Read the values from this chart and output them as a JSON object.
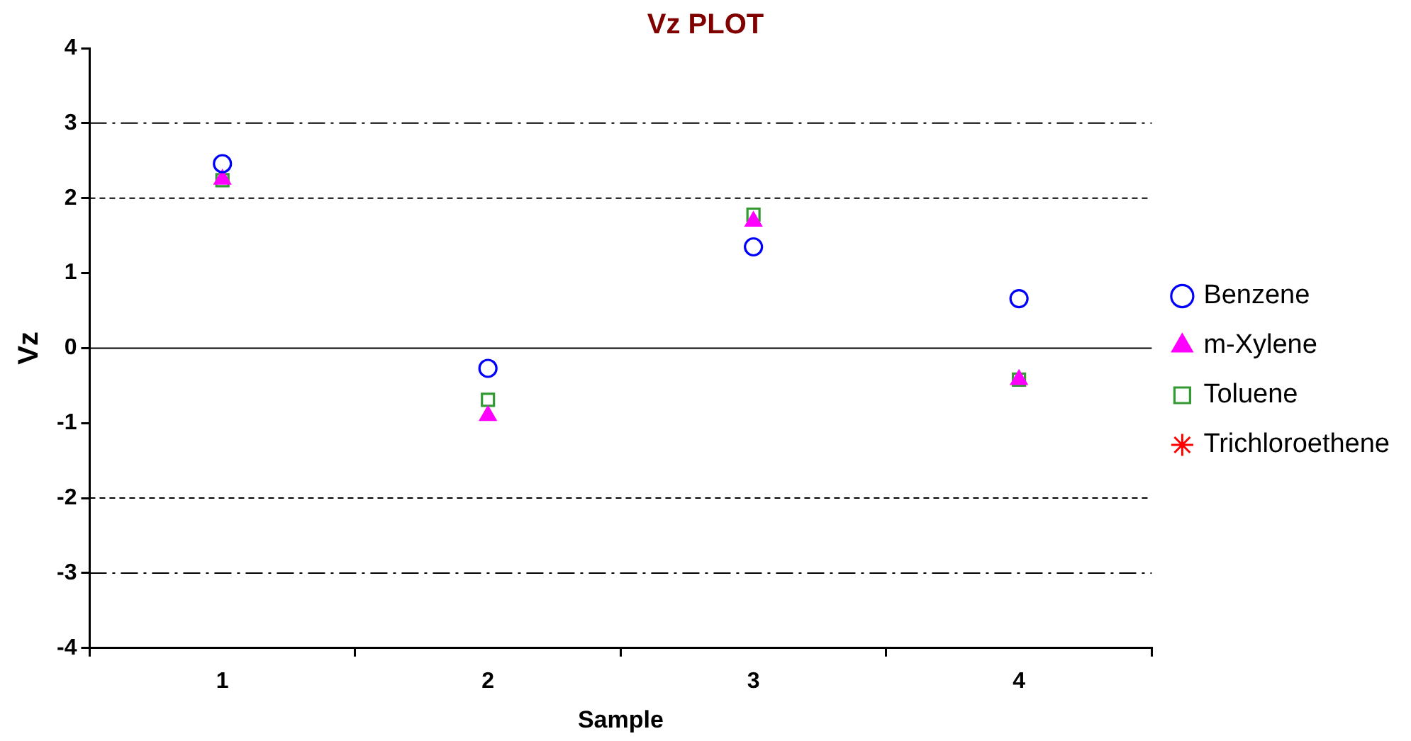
{
  "chart_data": {
    "type": "scatter",
    "title": "Vz PLOT",
    "xlabel": "Sample",
    "ylabel": "Vz",
    "categories": [
      "1",
      "2",
      "3",
      "4"
    ],
    "series": [
      {
        "name": "Benzene",
        "color": "#0000ff",
        "marker": "circle",
        "values": [
          2.46,
          -0.27,
          1.35,
          0.66
        ]
      },
      {
        "name": "m-Xylene",
        "color": "#ff00ff",
        "marker": "triangle",
        "values": [
          2.25,
          -0.9,
          1.69,
          -0.42
        ]
      },
      {
        "name": "Toluene",
        "color": "#339933",
        "marker": "square",
        "values": [
          2.24,
          -0.69,
          1.78,
          -0.42
        ]
      },
      {
        "name": "Trichloroethene",
        "color": "#ff0000",
        "marker": "star",
        "values": [
          null,
          null,
          null,
          null
        ]
      }
    ],
    "ylim": [
      -4,
      4
    ],
    "yticks": [
      -4,
      -3,
      -2,
      -1,
      0,
      1,
      2,
      3,
      4
    ],
    "grid": false,
    "legend": "right",
    "ref_lines": [
      {
        "axis": "y",
        "value": 3,
        "line_style": "dashdot",
        "color": "#000000"
      },
      {
        "axis": "y",
        "value": 2,
        "line_style": "dashed",
        "color": "#000000"
      },
      {
        "axis": "y",
        "value": 0,
        "line_style": "solid",
        "color": "#000000"
      },
      {
        "axis": "y",
        "value": -2,
        "line_style": "dashed",
        "color": "#000000"
      },
      {
        "axis": "y",
        "value": -3,
        "line_style": "dashdot",
        "color": "#000000"
      }
    ]
  }
}
